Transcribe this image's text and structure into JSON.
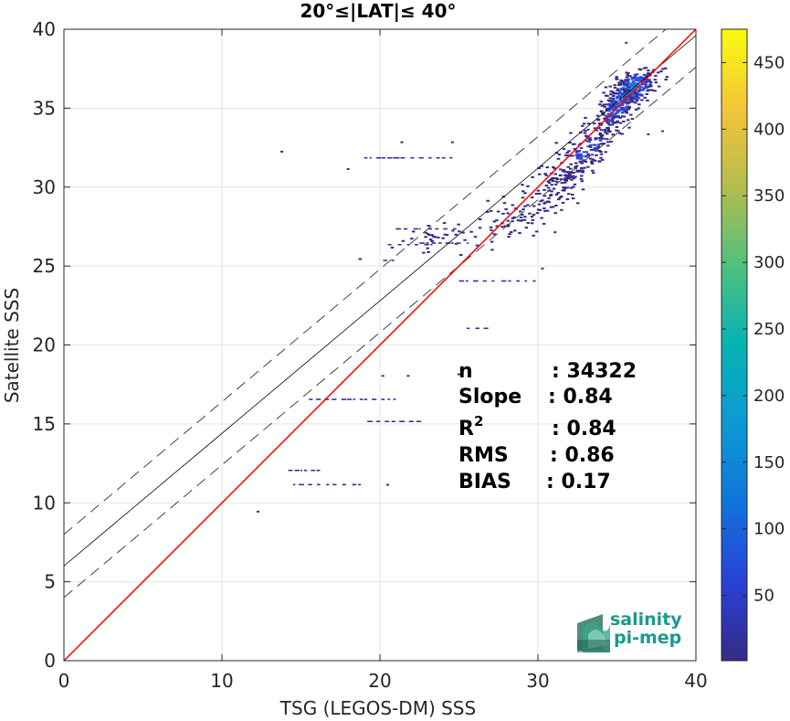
{
  "chart_data": {
    "type": "heatmap",
    "title": "20°≤|LAT|≤ 40°",
    "xlabel": "TSG (LEGOS-DM) SSS",
    "ylabel": "Satellite SSS",
    "xlim": [
      0,
      40
    ],
    "ylim": [
      0,
      40
    ],
    "xticks": [
      "0",
      "10",
      "20",
      "30",
      "40"
    ],
    "yticks": [
      "0",
      "5",
      "10",
      "15",
      "20",
      "25",
      "30",
      "35",
      "40"
    ],
    "grid": true,
    "colorbar": {
      "range": [
        1,
        475
      ],
      "ticks": [
        "50",
        "100",
        "150",
        "200",
        "250",
        "300",
        "350",
        "400",
        "450"
      ],
      "tick_values": [
        50,
        100,
        150,
        200,
        250,
        300,
        350,
        400,
        450
      ],
      "colormap": "parula"
    },
    "lines": {
      "identity": {
        "slope": 1,
        "intercept": 0,
        "color": "#ff0000"
      },
      "fit": {
        "slope": 0.84,
        "intercept": 6.0,
        "color": "#000000"
      },
      "fit_upper": {
        "slope": 0.84,
        "intercept": 8.0,
        "style": "dashed"
      },
      "fit_lower": {
        "slope": 0.84,
        "intercept": 4.0,
        "style": "dashed"
      }
    },
    "stats": [
      {
        "label": "n",
        "value": ": 34322"
      },
      {
        "label": "Slope",
        "value": ": 0.84"
      },
      {
        "label": "R",
        "sup": "2",
        "value": ": 0.84"
      },
      {
        "label": "RMS",
        "value": ": 0.86"
      },
      {
        "label": "BIAS",
        "value": ": 0.17"
      }
    ],
    "density_clusters": [
      {
        "x": 35.8,
        "y": 36.2,
        "sx": 0.8,
        "sy": 0.7,
        "count": 320,
        "level": 120
      },
      {
        "x": 34.8,
        "y": 35.0,
        "sx": 0.6,
        "sy": 0.7,
        "count": 160,
        "level": 90
      },
      {
        "x": 33.0,
        "y": 32.5,
        "sx": 0.9,
        "sy": 1.0,
        "count": 160,
        "level": 45
      },
      {
        "x": 31.0,
        "y": 30.0,
        "sx": 1.2,
        "sy": 1.2,
        "count": 120,
        "level": 25
      },
      {
        "x": 28.5,
        "y": 28.0,
        "sx": 1.3,
        "sy": 1.0,
        "count": 50,
        "level": 10
      },
      {
        "x": 24.0,
        "y": 27.0,
        "sx": 2.0,
        "sy": 0.6,
        "count": 40,
        "level": 5
      }
    ],
    "scatter_segments": [
      {
        "x1": 19.0,
        "x2": 21.5,
        "y": 31.9
      },
      {
        "x1": 21.0,
        "x2": 24.5,
        "y": 31.9
      },
      {
        "x1": 21.0,
        "x2": 25.0,
        "y": 27.4
      },
      {
        "x1": 20.5,
        "x2": 23.5,
        "y": 26.4
      },
      {
        "x1": 22.5,
        "x2": 25.5,
        "y": 26.5
      },
      {
        "x1": 25.0,
        "x2": 30.0,
        "y": 24.1
      },
      {
        "x1": 20.2,
        "x2": 21.0,
        "y": 25.4
      },
      {
        "x1": 25.5,
        "x2": 26.8,
        "y": 21.1
      },
      {
        "x1": 15.5,
        "x2": 19.0,
        "y": 16.6
      },
      {
        "x1": 19.0,
        "x2": 21.0,
        "y": 16.6
      },
      {
        "x1": 19.2,
        "x2": 22.5,
        "y": 15.2
      },
      {
        "x1": 14.5,
        "x2": 17.0,
        "y": 11.2
      },
      {
        "x1": 17.0,
        "x2": 19.0,
        "y": 11.2
      },
      {
        "x1": 14.2,
        "x2": 15.0,
        "y": 12.1
      },
      {
        "x1": 15.2,
        "x2": 16.0,
        "y": 12.1
      }
    ],
    "scatter_points": [
      {
        "x": 12.2,
        "y": 9.5
      },
      {
        "x": 13.7,
        "y": 32.3
      },
      {
        "x": 17.9,
        "y": 31.2
      },
      {
        "x": 20.1,
        "y": 18.1
      },
      {
        "x": 21.7,
        "y": 18.1
      },
      {
        "x": 24.5,
        "y": 32.9
      },
      {
        "x": 20.4,
        "y": 11.2
      },
      {
        "x": 21.3,
        "y": 32.9
      },
      {
        "x": 24.9,
        "y": 18.2
      },
      {
        "x": 35.5,
        "y": 39.2
      },
      {
        "x": 33.1,
        "y": 33.7
      },
      {
        "x": 30.2,
        "y": 24.9
      },
      {
        "x": 31.0,
        "y": 27.2
      },
      {
        "x": 37.8,
        "y": 33.6
      },
      {
        "x": 36.9,
        "y": 33.4
      }
    ]
  },
  "logo": {
    "line1": "salinity",
    "line2": "pi-mep"
  }
}
